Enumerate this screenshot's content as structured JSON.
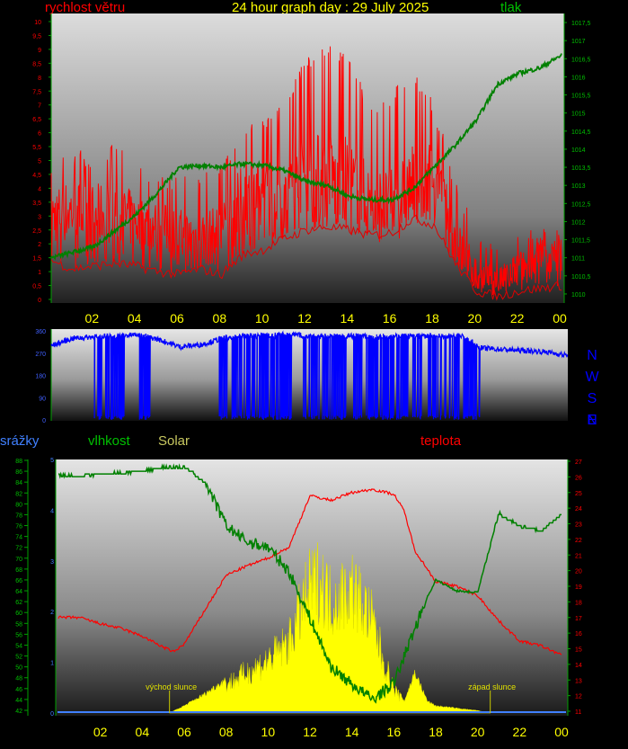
{
  "chart_data": [
    {
      "type": "line",
      "title": "24 hour graph day : 29 July 2025",
      "x_tick_labels": [
        "02",
        "04",
        "06",
        "08",
        "10",
        "12",
        "14",
        "16",
        "18",
        "20",
        "22",
        "00"
      ],
      "left_axis": {
        "label": "rychlost větru",
        "ylim": [
          0,
          10
        ],
        "ticks": [
          "0",
          "0,5",
          "1",
          "1,5",
          "2",
          "2,5",
          "3",
          "3,5",
          "4",
          "4,5",
          "5",
          "5,5",
          "6",
          "6,5",
          "7",
          "7,5",
          "8",
          "8,5",
          "9",
          "9,5",
          "10"
        ]
      },
      "right_axis": {
        "label": "tlak",
        "ylim": [
          1009.75,
          1017.75
        ],
        "ticks": [
          "1010",
          "1010,5",
          "1011",
          "1011,5",
          "1012",
          "1012,5",
          "1013",
          "1013,5",
          "1014",
          "1014,5",
          "1015",
          "1015,5",
          "1016",
          "1016,5",
          "1017",
          "1017,5"
        ]
      },
      "series": [
        {
          "name": "rychlost větru",
          "color": "#ff0000",
          "axis": "left",
          "hours": [
            0,
            1,
            2,
            3,
            4,
            5,
            6,
            7,
            8,
            9,
            10,
            11,
            12,
            13,
            14,
            15,
            16,
            17,
            18,
            19,
            20,
            21,
            22,
            23,
            24
          ],
          "values": [
            3,
            3.2,
            3,
            3.2,
            2.8,
            2.6,
            2.3,
            2.2,
            2.3,
            3.6,
            3.5,
            3.8,
            4.2,
            4.3,
            4.1,
            3.5,
            3.3,
            4.1,
            4.6,
            2.2,
            0.9,
            0.6,
            1.2,
            1.4,
            1.6
          ],
          "max": [
            5.1,
            5.4,
            5.3,
            5.6,
            4.9,
            4.4,
            4.5,
            4.7,
            4.9,
            6.3,
            6.6,
            7.1,
            8.8,
            9.2,
            8.9,
            7.1,
            7.5,
            8.5,
            7.2,
            4.3,
            2.6,
            1.9,
            2.4,
            2.6,
            2.7
          ],
          "min": [
            1.4,
            1.1,
            1.2,
            1.3,
            1.2,
            1.0,
            0.9,
            1.1,
            0.9,
            1.6,
            1.8,
            2.2,
            2.5,
            2.6,
            2.5,
            2.3,
            2.4,
            2.9,
            2.7,
            1.3,
            0.3,
            0.1,
            0.3,
            0.4,
            0.5
          ]
        },
        {
          "name": "tlak",
          "color": "#008000",
          "axis": "right",
          "hours": [
            0,
            2,
            4,
            5,
            6,
            7,
            8,
            9,
            10,
            11,
            12,
            13,
            14,
            15,
            16,
            17,
            18,
            19,
            20,
            21,
            22,
            23,
            24
          ],
          "values": [
            1011,
            1011.3,
            1012.2,
            1012.8,
            1013.5,
            1013.55,
            1013.5,
            1013.6,
            1013.55,
            1013.4,
            1013.1,
            1013,
            1012.7,
            1012.6,
            1012.6,
            1012.9,
            1013.5,
            1014.1,
            1014.8,
            1015.8,
            1016.1,
            1016.25,
            1016.6
          ]
        }
      ]
    },
    {
      "type": "line",
      "side_labels": [
        "N",
        "W",
        "S",
        "E",
        "N"
      ],
      "ylim": [
        0,
        360
      ],
      "ticks": [
        "0",
        "90",
        "180",
        "270",
        "360"
      ],
      "series": [
        {
          "name": "",
          "color": "#0000ff",
          "hours": [
            0,
            1,
            2,
            3,
            4,
            5,
            6,
            7,
            8,
            9,
            10,
            11,
            12,
            13,
            14,
            15,
            16,
            17,
            18,
            19,
            20,
            21,
            22,
            23,
            24
          ],
          "values": [
            300,
            330,
            336,
            338,
            345,
            325,
            295,
            305,
            330,
            340,
            340,
            345,
            340,
            338,
            340,
            336,
            340,
            340,
            338,
            342,
            290,
            285,
            280,
            275,
            260
          ],
          "dropout_hours": [
            [
              2.0,
              3.4
            ],
            [
              4.0,
              4.6
            ],
            [
              7.8,
              8.2
            ],
            [
              8.4,
              11.2
            ],
            [
              11.6,
              13.7
            ],
            [
              13.9,
              17.2
            ],
            [
              17.5,
              19.9
            ]
          ]
        }
      ]
    },
    {
      "type": "line",
      "x_tick_labels": [
        "02",
        "04",
        "06",
        "08",
        "10",
        "12",
        "14",
        "16",
        "18",
        "20",
        "22",
        "00"
      ],
      "left_axis_1": {
        "label": "srážky",
        "ylim": [
          0,
          5
        ],
        "ticks": [
          "0",
          "1",
          "2",
          "3",
          "4",
          "5"
        ]
      },
      "left_axis_2": {
        "label": "vlhkost",
        "ylim": [
          40.5,
          89
        ],
        "ticks": [
          "42",
          "44",
          "46",
          "48",
          "50",
          "52",
          "54",
          "56",
          "58",
          "60",
          "62",
          "64",
          "66",
          "68",
          "70",
          "72",
          "74",
          "76",
          "78",
          "80",
          "82",
          "84",
          "86",
          "88"
        ]
      },
      "right_axis": {
        "label": "teplota",
        "ylim": [
          10.7,
          27.5
        ],
        "ticks": [
          "11",
          "12",
          "13",
          "14",
          "15",
          "16",
          "17",
          "18",
          "19",
          "20",
          "21",
          "22",
          "23",
          "24",
          "25",
          "26",
          "27"
        ]
      },
      "solar_label": "Solar",
      "annotations": [
        {
          "text": "východ slunce",
          "hour": 5.3
        },
        {
          "text": "západ slunce",
          "hour": 20.6
        }
      ],
      "series": [
        {
          "name": "teplota",
          "color": "#ff0000",
          "hours": [
            0,
            1,
            2,
            3,
            4,
            5,
            5.5,
            6,
            7,
            8,
            9,
            10,
            11,
            12,
            13,
            14,
            15,
            16,
            16.5,
            17,
            18,
            19,
            20,
            21,
            22,
            23,
            24
          ],
          "values": [
            17,
            17,
            16.6,
            16.3,
            15.8,
            15.1,
            14.8,
            15.3,
            17.5,
            19.7,
            20.3,
            20.8,
            21.5,
            24.8,
            24.5,
            25,
            25.2,
            24.9,
            23.8,
            21.3,
            19.3,
            19,
            18.4,
            16.8,
            15.5,
            15.2,
            14.6
          ]
        },
        {
          "name": "vlhkost",
          "color": "#008000",
          "hours": [
            0,
            1,
            2,
            3,
            4,
            5,
            6,
            7,
            8,
            9,
            10,
            11,
            12,
            13,
            14,
            15,
            16,
            17,
            17.5,
            18,
            19,
            20,
            21,
            22,
            23,
            24
          ],
          "values": [
            85.2,
            85.1,
            85.5,
            85.7,
            86,
            86.7,
            86.8,
            84,
            76,
            73,
            72,
            67.5,
            59,
            50,
            46.8,
            44,
            47,
            57,
            62,
            66,
            64,
            63.7,
            78.2,
            76,
            75,
            78
          ]
        },
        {
          "name": "srážky",
          "color": "#4080ff",
          "values": [
            0
          ]
        },
        {
          "name": "Solar",
          "color": "#ffff00",
          "hours": [
            5.3,
            6,
            7,
            8,
            9,
            10,
            11,
            12,
            12.5,
            13,
            14,
            15,
            15.5,
            16,
            16.5,
            16.8,
            17,
            17.3,
            17.6,
            18,
            19,
            20,
            20.6
          ],
          "values": [
            0,
            0.03,
            0.08,
            0.14,
            0.2,
            0.26,
            0.35,
            0.62,
            0.66,
            0.55,
            0.62,
            0.45,
            0.26,
            0.12,
            0.05,
            0.12,
            0.17,
            0.11,
            0.05,
            0.03,
            0.02,
            0.01,
            0
          ]
        }
      ]
    }
  ]
}
